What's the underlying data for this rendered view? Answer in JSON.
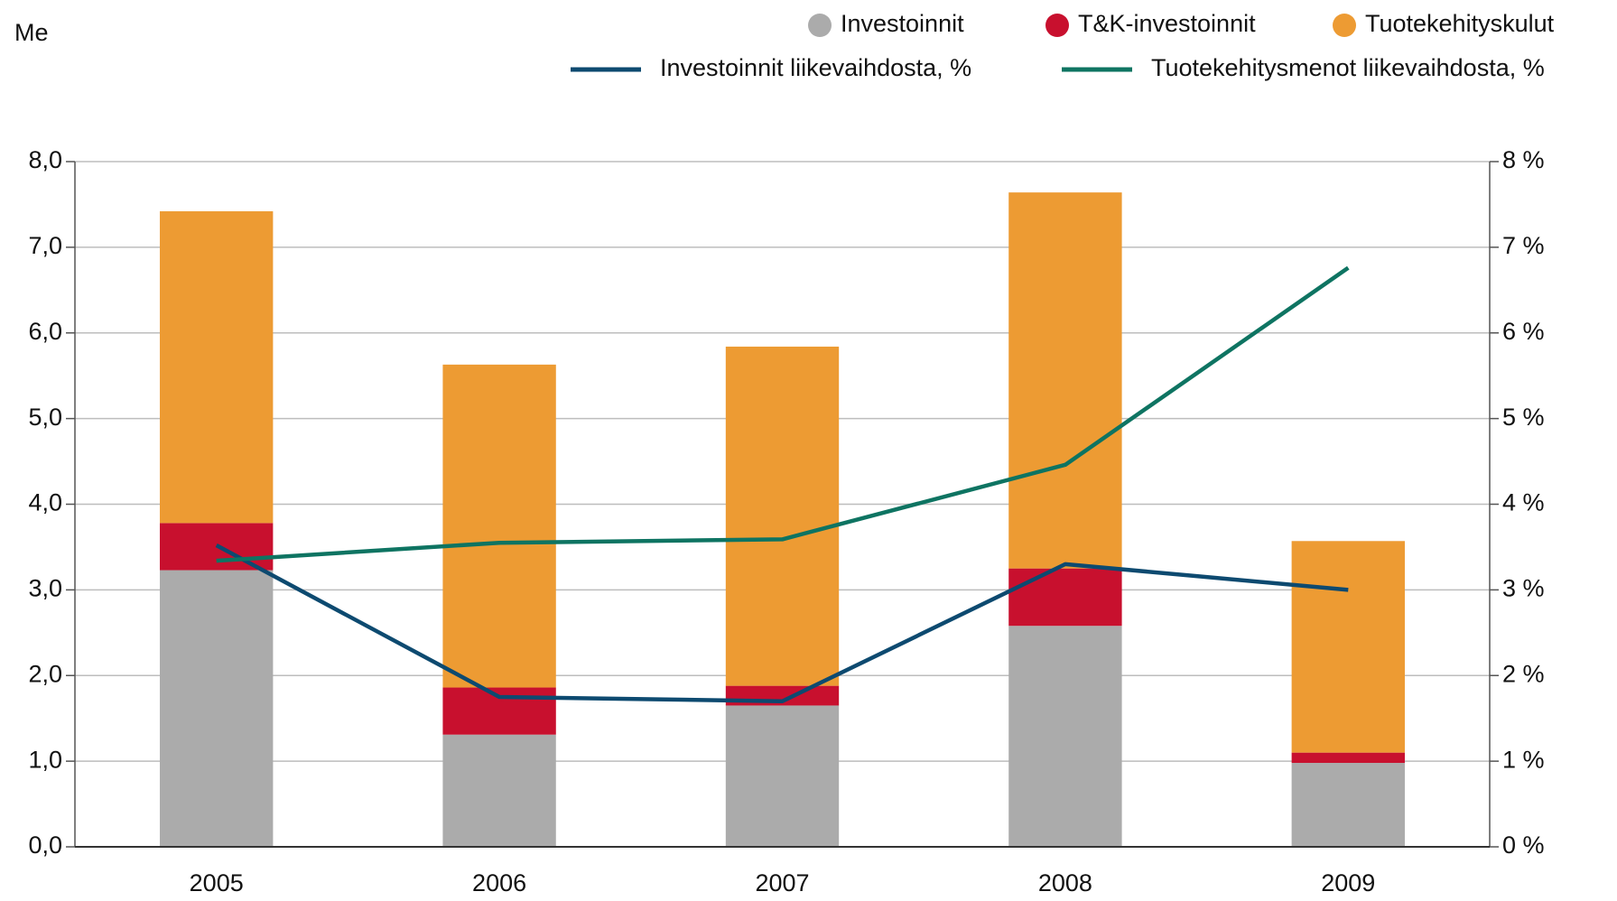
{
  "chart_data": {
    "type": "bar-line",
    "y_label": "Me",
    "categories": [
      "2005",
      "2006",
      "2007",
      "2008",
      "2009"
    ],
    "series": [
      {
        "name": "Investoinnit",
        "type": "bar",
        "color": "#ababab",
        "values": [
          3.23,
          1.31,
          1.65,
          2.58,
          0.98
        ]
      },
      {
        "name": "T&K-investoinnit",
        "type": "bar",
        "color": "#c8102e",
        "values": [
          0.55,
          0.55,
          0.23,
          0.67,
          0.12
        ]
      },
      {
        "name": "Tuotekehityskulut",
        "type": "bar",
        "color": "#ed9b33",
        "values": [
          3.64,
          3.77,
          3.96,
          4.39,
          2.47
        ]
      },
      {
        "name": "Investoinnit liikevaihdosta, %",
        "type": "line",
        "axis": "y2",
        "color": "#0d4a70",
        "values": [
          3.52,
          1.75,
          1.7,
          3.3,
          3.0
        ]
      },
      {
        "name": "Tuotekehitysmenot liikevaihdosta, %",
        "type": "line",
        "axis": "y2",
        "color": "#0e7462",
        "values": [
          3.34,
          3.55,
          3.59,
          4.46,
          6.76
        ]
      }
    ],
    "ylim": [
      0,
      8
    ],
    "yticks": [
      {
        "value": 0,
        "label": "0,0"
      },
      {
        "value": 1,
        "label": "1,0"
      },
      {
        "value": 2,
        "label": "2,0"
      },
      {
        "value": 3,
        "label": "3,0"
      },
      {
        "value": 4,
        "label": "4,0"
      },
      {
        "value": 5,
        "label": "5,0"
      },
      {
        "value": 6,
        "label": "6,0"
      },
      {
        "value": 7,
        "label": "7,0"
      },
      {
        "value": 8,
        "label": "8,0"
      }
    ],
    "y2lim": [
      0,
      8
    ],
    "y2ticks": [
      {
        "value": 0,
        "label": "0 %"
      },
      {
        "value": 1,
        "label": "1 %"
      },
      {
        "value": 2,
        "label": "2 %"
      },
      {
        "value": 3,
        "label": "3 %"
      },
      {
        "value": 4,
        "label": "4 %"
      },
      {
        "value": 5,
        "label": "5 %"
      },
      {
        "value": 6,
        "label": "6 %"
      },
      {
        "value": 7,
        "label": "7 %"
      },
      {
        "value": 8,
        "label": "8 %"
      }
    ],
    "grid": true
  }
}
